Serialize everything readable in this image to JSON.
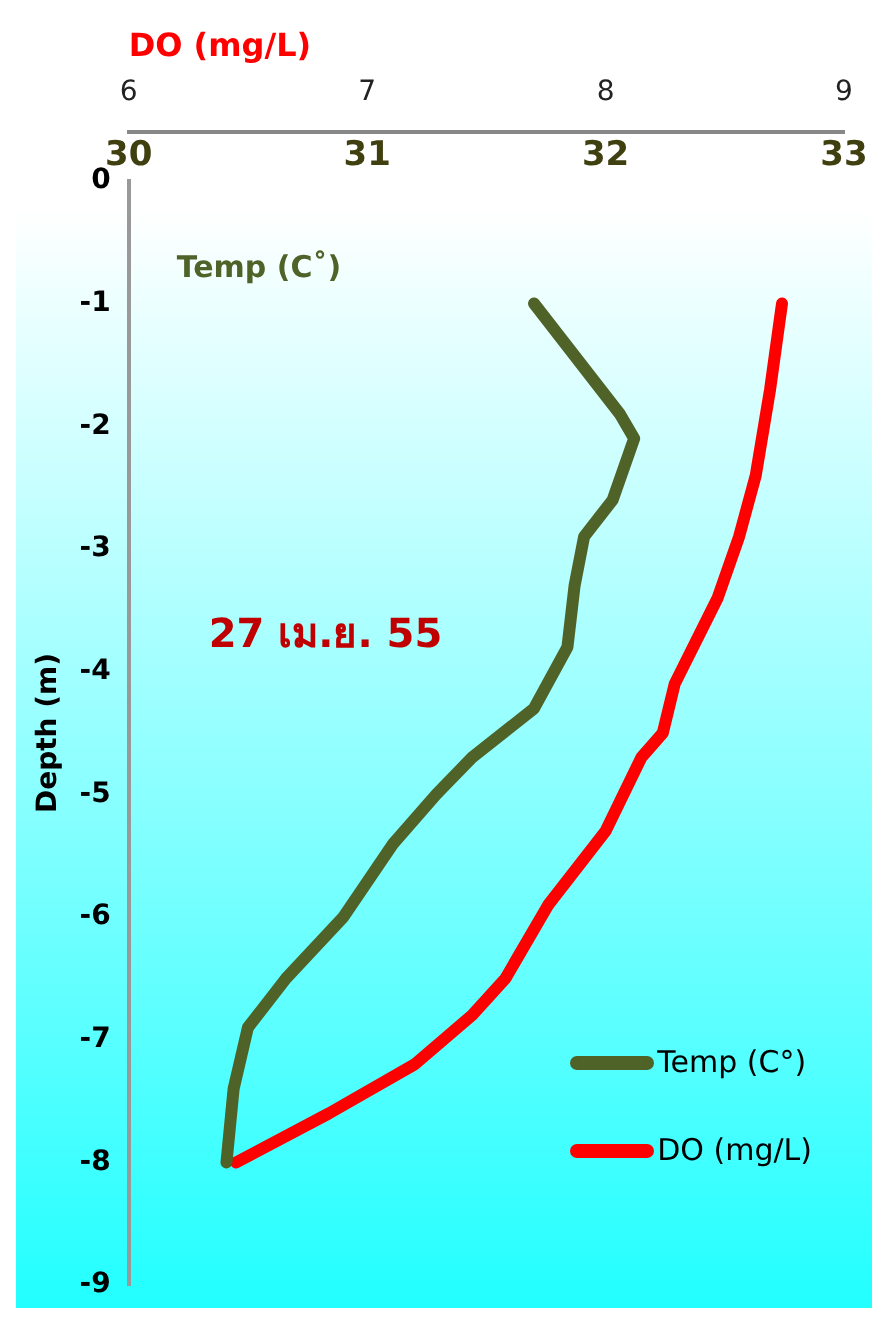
{
  "chart_data": {
    "type": "line",
    "title": null,
    "xlabel": "Temp (C˚)",
    "x2label": "DO (mg/L)",
    "ylabel": "Depth (m)",
    "xlim": [
      30,
      33
    ],
    "xticks": [
      30,
      31,
      32,
      33
    ],
    "x2lim": [
      6,
      9
    ],
    "x2ticks": [
      6,
      7,
      8,
      9
    ],
    "ylim": [
      -9,
      0
    ],
    "yticks": [
      0,
      -1,
      -2,
      -3,
      -4,
      -5,
      -6,
      -7,
      -8,
      -9
    ],
    "grid": false,
    "legend": "bottom right",
    "marker": "none",
    "line_style": "solid",
    "annotations": [
      "27 เม.ย. 55"
    ],
    "series": [
      {
        "name": "Temp (C°)",
        "color": "#4f6228",
        "x": [
          31.7,
          32.06,
          32.12,
          32.03,
          31.91,
          31.87,
          31.84,
          31.7,
          31.44,
          31.29,
          31.11,
          30.9,
          30.66,
          30.5,
          30.44,
          30.41
        ],
        "values": [
          -1,
          -1.9,
          -2.1,
          -2.6,
          -2.9,
          -3.3,
          -3.8,
          -4.3,
          -4.7,
          -5,
          -5.4,
          -6,
          -6.5,
          -6.9,
          -7.4,
          -8
        ]
      },
      {
        "name": "DO (mg/L)",
        "color": "#ff0000",
        "axis": "x2",
        "x": [
          8.74,
          8.69,
          8.63,
          8.56,
          8.47,
          8.29,
          8.24,
          8.15,
          8.0,
          7.76,
          7.58,
          7.44,
          7.2,
          6.84,
          6.45
        ],
        "values": [
          -1,
          -1.7,
          -2.4,
          -2.9,
          -3.4,
          -4.1,
          -4.5,
          -4.7,
          -5.3,
          -5.9,
          -6.5,
          -6.8,
          -7.2,
          -7.6,
          -8
        ]
      }
    ]
  }
}
